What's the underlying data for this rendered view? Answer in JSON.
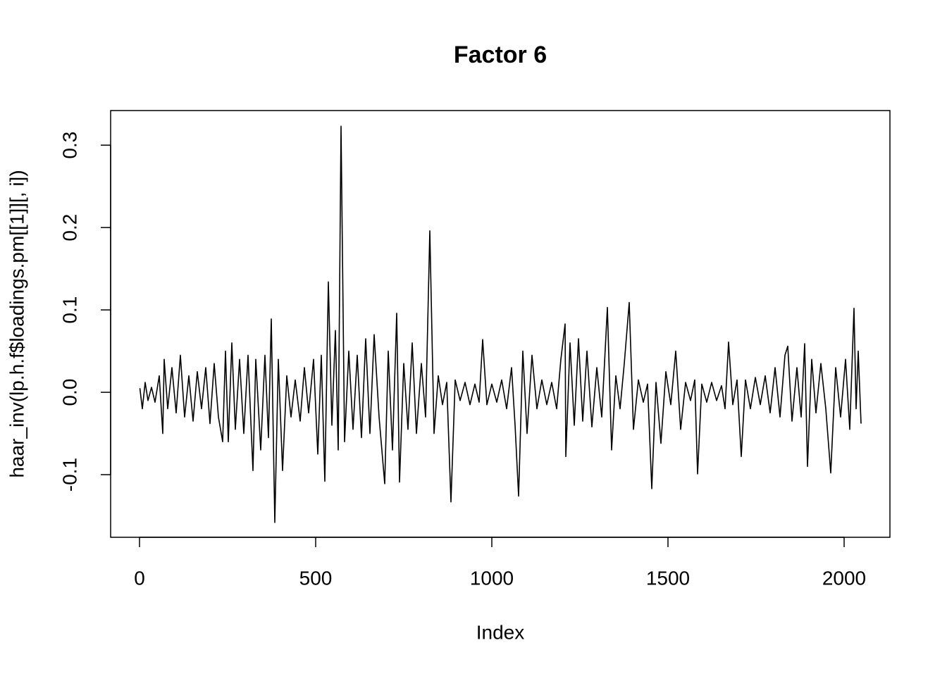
{
  "chart_data": {
    "type": "line",
    "title": "Factor 6",
    "xlabel": "Index",
    "ylabel": "haar_inv(lp.h.f$loadings.pm[[1]][, i])",
    "color": "#000000",
    "xlim": [
      -82,
      2130
    ],
    "ylim": [
      -0.176,
      0.342
    ],
    "xticks": [
      0,
      500,
      1000,
      1500,
      2000
    ],
    "yticks": [
      -0.1,
      {
        "value": 0,
        "label": "0.0"
      },
      0.1,
      0.2,
      0.3
    ],
    "x": [
      1,
      8,
      16,
      24,
      34,
      44,
      56,
      66,
      70,
      80,
      92,
      104,
      116,
      128,
      140,
      152,
      164,
      176,
      188,
      200,
      212,
      224,
      236,
      244,
      252,
      262,
      272,
      284,
      296,
      308,
      322,
      330,
      344,
      356,
      366,
      374,
      384,
      394,
      406,
      418,
      430,
      442,
      456,
      468,
      480,
      494,
      506,
      516,
      526,
      536,
      546,
      556,
      564,
      572,
      582,
      594,
      606,
      618,
      630,
      642,
      654,
      666,
      680,
      696,
      706,
      718,
      730,
      738,
      750,
      762,
      774,
      786,
      800,
      812,
      824,
      836,
      848,
      860,
      872,
      884,
      896,
      910,
      924,
      938,
      952,
      964,
      974,
      986,
      1000,
      1014,
      1028,
      1042,
      1056,
      1066,
      1076,
      1088,
      1100,
      1114,
      1128,
      1142,
      1156,
      1170,
      1184,
      1196,
      1208,
      1210,
      1222,
      1234,
      1246,
      1258,
      1270,
      1284,
      1298,
      1312,
      1328,
      1340,
      1352,
      1364,
      1376,
      1390,
      1402,
      1416,
      1430,
      1442,
      1454,
      1466,
      1480,
      1494,
      1508,
      1522,
      1536,
      1550,
      1564,
      1576,
      1584,
      1596,
      1610,
      1624,
      1638,
      1652,
      1662,
      1672,
      1684,
      1696,
      1708,
      1720,
      1734,
      1748,
      1762,
      1776,
      1790,
      1804,
      1818,
      1832,
      1840,
      1852,
      1866,
      1878,
      1888,
      1896,
      1908,
      1920,
      1934,
      1948,
      1962,
      1976,
      1990,
      2004,
      2016,
      2028,
      2034,
      2040,
      2048
    ],
    "values": [
      0.005,
      -0.02,
      0.012,
      -0.01,
      0.006,
      -0.012,
      0.02,
      -0.05,
      0.04,
      -0.02,
      0.03,
      -0.025,
      0.045,
      -0.03,
      0.02,
      -0.035,
      0.025,
      -0.02,
      0.03,
      -0.038,
      0.035,
      -0.03,
      -0.06,
      0.05,
      -0.06,
      0.06,
      -0.045,
      0.04,
      -0.05,
      0.045,
      -0.095,
      0.04,
      -0.07,
      0.045,
      -0.055,
      0.089,
      -0.158,
      0.04,
      -0.095,
      0.02,
      -0.03,
      0.015,
      -0.035,
      0.03,
      -0.025,
      0.04,
      -0.075,
      0.045,
      -0.108,
      0.134,
      -0.04,
      0.075,
      -0.07,
      0.323,
      -0.06,
      0.05,
      -0.045,
      0.045,
      -0.055,
      0.065,
      -0.05,
      0.07,
      -0.03,
      -0.111,
      0.05,
      -0.07,
      0.096,
      -0.109,
      0.035,
      -0.045,
      0.06,
      -0.05,
      0.035,
      -0.03,
      0.196,
      -0.05,
      0.02,
      -0.015,
      0.012,
      -0.133,
      0.015,
      -0.01,
      0.012,
      -0.015,
      0.01,
      -0.012,
      0.064,
      -0.015,
      0.01,
      -0.012,
      0.015,
      -0.02,
      0.03,
      -0.04,
      -0.126,
      0.05,
      -0.05,
      0.045,
      -0.02,
      0.015,
      -0.015,
      0.012,
      -0.02,
      0.04,
      0.083,
      -0.078,
      0.06,
      -0.04,
      0.065,
      -0.035,
      0.05,
      -0.042,
      0.03,
      -0.03,
      0.103,
      -0.07,
      0.02,
      -0.02,
      0.035,
      0.109,
      -0.045,
      0.015,
      -0.012,
      0.01,
      -0.117,
      0.012,
      -0.062,
      0.025,
      -0.015,
      0.05,
      -0.045,
      0.012,
      -0.01,
      0.015,
      -0.099,
      0.01,
      -0.012,
      0.012,
      -0.01,
      0.008,
      -0.02,
      0.061,
      -0.015,
      0.015,
      -0.078,
      0.015,
      -0.02,
      0.018,
      -0.015,
      0.02,
      -0.025,
      0.03,
      -0.03,
      0.045,
      0.056,
      -0.035,
      0.03,
      -0.03,
      0.059,
      -0.09,
      0.04,
      -0.025,
      0.035,
      -0.02,
      -0.098,
      0.03,
      -0.03,
      0.04,
      -0.045,
      0.102,
      -0.02,
      0.05,
      -0.038
    ]
  }
}
